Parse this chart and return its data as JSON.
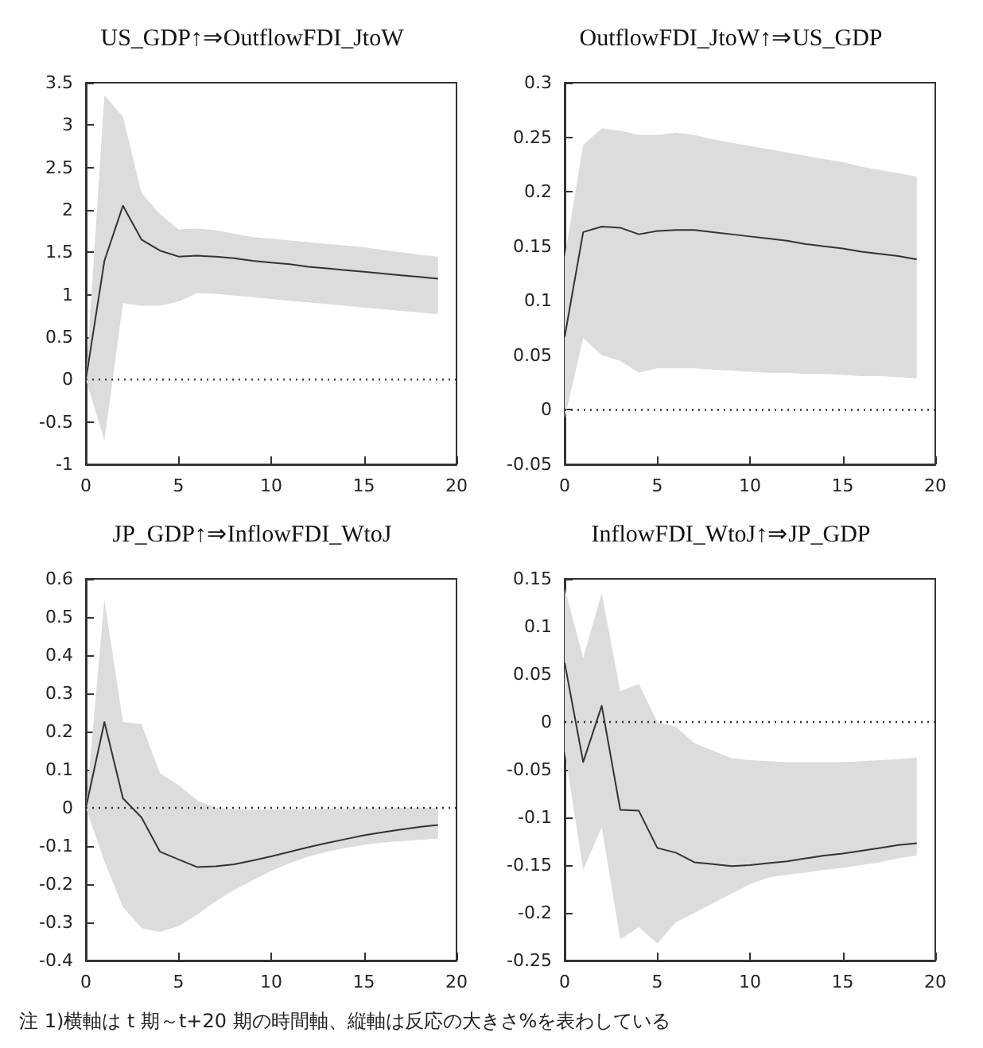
{
  "chart_data": [
    {
      "type": "line",
      "title": "US_GDP↑⇒OutflowFDI_JtoW",
      "x": [
        0,
        1,
        2,
        3,
        4,
        5,
        6,
        7,
        8,
        9,
        10,
        11,
        12,
        13,
        14,
        15,
        16,
        17,
        18,
        19
      ],
      "xlim": [
        0,
        20
      ],
      "xticks": [
        0,
        5,
        10,
        15,
        20
      ],
      "ylim": [
        -1,
        3.5
      ],
      "yticks": [
        -1,
        -0.5,
        0,
        0.5,
        1,
        1.5,
        2,
        2.5,
        3,
        3.5
      ],
      "grid": false,
      "series": [
        {
          "color": "#333333",
          "values": [
            0,
            1.4,
            2.05,
            1.65,
            1.52,
            1.45,
            1.46,
            1.45,
            1.43,
            1.4,
            1.38,
            1.36,
            1.33,
            1.31,
            1.29,
            1.27,
            1.25,
            1.23,
            1.21,
            1.19
          ],
          "upper": [
            0,
            3.35,
            3.1,
            2.2,
            1.95,
            1.77,
            1.78,
            1.76,
            1.72,
            1.68,
            1.66,
            1.64,
            1.62,
            1.6,
            1.58,
            1.56,
            1.53,
            1.5,
            1.47,
            1.45
          ],
          "lower": [
            0,
            -0.72,
            0.9,
            0.87,
            0.87,
            0.92,
            1.02,
            1.01,
            0.99,
            0.97,
            0.95,
            0.93,
            0.91,
            0.89,
            0.87,
            0.85,
            0.83,
            0.81,
            0.79,
            0.77
          ]
        }
      ],
      "ref_lines": [
        {
          "axis": "y",
          "value": 0,
          "line_style": "dotted",
          "color": "#333333"
        }
      ]
    },
    {
      "type": "line",
      "title": "OutflowFDI_JtoW↑⇒US_GDP",
      "x": [
        0,
        1,
        2,
        3,
        4,
        5,
        6,
        7,
        8,
        9,
        10,
        11,
        12,
        13,
        14,
        15,
        16,
        17,
        18,
        19
      ],
      "xlim": [
        0,
        20
      ],
      "xticks": [
        0,
        5,
        10,
        15,
        20
      ],
      "ylim": [
        -0.05,
        0.3
      ],
      "yticks": [
        -0.05,
        0,
        0.05,
        0.1,
        0.15,
        0.2,
        0.25,
        0.3
      ],
      "grid": false,
      "series": [
        {
          "color": "#333333",
          "values": [
            0.067,
            0.163,
            0.168,
            0.167,
            0.161,
            0.164,
            0.165,
            0.165,
            0.163,
            0.161,
            0.159,
            0.157,
            0.155,
            0.152,
            0.15,
            0.148,
            0.145,
            0.143,
            0.141,
            0.138
          ],
          "upper": [
            0.14,
            0.243,
            0.258,
            0.256,
            0.252,
            0.252,
            0.254,
            0.252,
            0.248,
            0.245,
            0.242,
            0.239,
            0.236,
            0.233,
            0.23,
            0.227,
            0.223,
            0.22,
            0.217,
            0.214
          ],
          "lower": [
            -0.008,
            0.066,
            0.05,
            0.045,
            0.034,
            0.038,
            0.038,
            0.038,
            0.037,
            0.036,
            0.035,
            0.034,
            0.034,
            0.033,
            0.033,
            0.032,
            0.031,
            0.031,
            0.03,
            0.029
          ]
        }
      ],
      "ref_lines": [
        {
          "axis": "y",
          "value": 0,
          "line_style": "dotted",
          "color": "#333333"
        }
      ]
    },
    {
      "type": "line",
      "title": "JP_GDP↑⇒InflowFDI_WtoJ",
      "x": [
        0,
        1,
        2,
        3,
        4,
        5,
        6,
        7,
        8,
        9,
        10,
        11,
        12,
        13,
        14,
        15,
        16,
        17,
        18,
        19
      ],
      "xlim": [
        0,
        20
      ],
      "xticks": [
        0,
        5,
        10,
        15,
        20
      ],
      "ylim": [
        -0.4,
        0.6
      ],
      "yticks": [
        -0.4,
        -0.3,
        -0.2,
        -0.1,
        0,
        0.1,
        0.2,
        0.3,
        0.4,
        0.5,
        0.6
      ],
      "grid": false,
      "series": [
        {
          "color": "#333333",
          "values": [
            0,
            0.225,
            0.025,
            -0.025,
            -0.115,
            -0.135,
            -0.155,
            -0.153,
            -0.148,
            -0.138,
            -0.127,
            -0.115,
            -0.103,
            -0.092,
            -0.082,
            -0.072,
            -0.064,
            -0.057,
            -0.05,
            -0.045
          ],
          "upper": [
            0,
            0.545,
            0.225,
            0.22,
            0.09,
            0.06,
            0.02,
            0,
            -0.003,
            -0.004,
            -0.004,
            -0.003,
            -0.003,
            -0.002,
            -0.002,
            -0.001,
            -0.001,
            0,
            0,
            0
          ],
          "lower": [
            0,
            -0.14,
            -0.26,
            -0.315,
            -0.325,
            -0.31,
            -0.28,
            -0.245,
            -0.215,
            -0.19,
            -0.165,
            -0.145,
            -0.128,
            -0.115,
            -0.105,
            -0.097,
            -0.091,
            -0.087,
            -0.084,
            -0.08
          ]
        }
      ],
      "ref_lines": [
        {
          "axis": "y",
          "value": 0,
          "line_style": "dotted",
          "color": "#333333"
        }
      ],
      "annotations": [
        "注 1)横軸は t 期～t+20 期の時間軸、縦軸は反応の大きさ%を表わしている"
      ]
    },
    {
      "type": "line",
      "title": "InflowFDI_WtoJ↑⇒JP_GDP",
      "x": [
        0,
        1,
        2,
        3,
        4,
        5,
        6,
        7,
        8,
        9,
        10,
        11,
        12,
        13,
        14,
        15,
        16,
        17,
        18,
        19
      ],
      "xlim": [
        0,
        20
      ],
      "xticks": [
        0,
        5,
        10,
        15,
        20
      ],
      "ylim": [
        -0.25,
        0.15
      ],
      "yticks": [
        -0.25,
        -0.2,
        -0.15,
        -0.1,
        -0.05,
        0,
        0.05,
        0.1,
        0.15
      ],
      "grid": false,
      "series": [
        {
          "color": "#333333",
          "values": [
            0.062,
            -0.042,
            0.017,
            -0.092,
            -0.093,
            -0.132,
            -0.137,
            -0.147,
            -0.149,
            -0.151,
            -0.15,
            -0.148,
            -0.146,
            -0.143,
            -0.14,
            -0.138,
            -0.135,
            -0.132,
            -0.129,
            -0.127
          ],
          "upper": [
            0.14,
            0.067,
            0.135,
            0.032,
            0.04,
            0,
            -0.005,
            -0.022,
            -0.03,
            -0.038,
            -0.04,
            -0.041,
            -0.042,
            -0.042,
            -0.042,
            -0.042,
            -0.041,
            -0.04,
            -0.039,
            -0.037
          ],
          "lower": [
            -0.03,
            -0.155,
            -0.11,
            -0.228,
            -0.215,
            -0.232,
            -0.21,
            -0.2,
            -0.19,
            -0.18,
            -0.17,
            -0.163,
            -0.16,
            -0.158,
            -0.155,
            -0.153,
            -0.15,
            -0.147,
            -0.143,
            -0.14
          ]
        }
      ],
      "ref_lines": [
        {
          "axis": "y",
          "value": 0,
          "line_style": "dotted",
          "color": "#333333"
        }
      ]
    }
  ]
}
